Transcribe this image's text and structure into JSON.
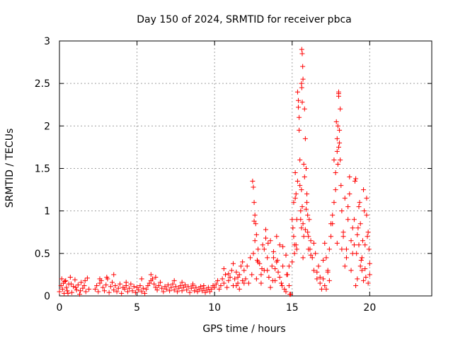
{
  "chart_data": {
    "type": "scatter",
    "title": "Day 150 of 2024, SRMTID for receiver pbca",
    "xlabel": "GPS time / hours",
    "ylabel": "SRMTID / TECUs",
    "xlim": [
      0,
      24
    ],
    "ylim": [
      0,
      3
    ],
    "xticks": [
      0,
      5,
      10,
      15,
      20
    ],
    "xtick_labels": [
      "0",
      "5",
      "10",
      "15",
      "20"
    ],
    "yticks": [
      0,
      0.5,
      1,
      1.5,
      2,
      2.5,
      3
    ],
    "ytick_labels": [
      "0",
      "0.5",
      "1",
      "1.5",
      "2",
      "2.5",
      "3"
    ],
    "grid": true,
    "marker": "+",
    "series": [
      {
        "name": "pbca",
        "color": "#ff0000",
        "x": [
          0.0,
          0.1,
          0.15,
          0.2,
          0.25,
          0.3,
          0.4,
          0.45,
          0.5,
          0.6,
          0.7,
          0.8,
          0.9,
          1.0,
          1.1,
          1.2,
          1.3,
          1.4,
          1.5,
          1.6,
          1.7,
          1.8,
          1.9,
          0.35,
          0.55,
          0.75,
          1.05,
          1.35,
          1.65,
          2.3,
          2.4,
          2.5,
          2.6,
          2.7,
          2.8,
          2.9,
          3.0,
          3.1,
          3.2,
          3.3,
          3.4,
          3.5,
          3.6,
          3.7,
          3.8,
          3.9,
          4.0,
          4.1,
          4.2,
          4.3,
          4.4,
          4.5,
          4.6,
          4.7,
          4.8,
          4.9,
          5.0,
          5.1,
          5.2,
          5.3,
          5.4,
          5.5,
          5.6,
          5.7,
          5.8,
          5.9,
          6.0,
          6.1,
          6.2,
          6.3,
          6.4,
          6.5,
          6.6,
          6.7,
          6.8,
          6.9,
          7.0,
          7.1,
          7.2,
          7.3,
          7.4,
          7.5,
          7.6,
          7.7,
          7.8,
          7.9,
          8.0,
          8.1,
          8.2,
          8.3,
          8.4,
          8.5,
          8.6,
          8.7,
          8.8,
          8.9,
          9.0,
          9.1,
          9.2,
          9.3,
          9.4,
          9.5,
          9.6,
          9.7,
          9.8,
          9.9,
          2.6,
          3.05,
          3.5,
          4.3,
          5.3,
          5.9,
          6.2,
          7.4,
          7.9,
          8.6,
          9.3,
          10.0,
          10.1,
          10.2,
          10.3,
          10.4,
          10.5,
          10.6,
          10.7,
          10.8,
          10.9,
          11.0,
          11.1,
          11.2,
          11.3,
          11.4,
          11.5,
          11.6,
          11.7,
          11.8,
          11.9,
          10.6,
          10.9,
          11.2,
          11.5,
          11.8,
          11.4,
          11.6,
          11.9,
          12.0,
          12.1,
          12.2,
          12.3,
          12.4,
          12.45,
          12.5,
          12.55,
          12.6,
          12.65,
          12.7,
          12.8,
          12.9,
          13.0,
          13.1,
          13.2,
          13.3,
          13.4,
          13.5,
          13.6,
          13.7,
          13.8,
          13.9,
          14.0,
          14.1,
          14.2,
          14.3,
          14.4,
          14.5,
          14.6,
          14.7,
          14.8,
          14.9,
          12.5,
          12.6,
          12.7,
          12.8,
          13.0,
          13.2,
          13.4,
          13.6,
          13.8,
          14.0,
          14.2,
          14.4,
          14.6,
          14.8,
          12.55,
          12.75,
          13.05,
          13.45,
          13.75,
          14.05,
          14.35,
          14.65,
          14.85,
          13.3,
          13.9,
          15.0,
          15.05,
          15.1,
          15.15,
          15.2,
          15.25,
          15.3,
          15.35,
          15.4,
          15.45,
          15.5,
          15.55,
          15.6,
          15.62,
          15.65,
          15.68,
          15.7,
          15.75,
          15.8,
          15.85,
          15.9,
          15.95,
          16.0,
          16.05,
          16.1,
          16.15,
          16.2,
          16.3,
          16.4,
          16.5,
          16.6,
          16.7,
          16.8,
          16.9,
          15.0,
          15.1,
          15.2,
          15.3,
          15.4,
          15.5,
          15.6,
          15.7,
          15.8,
          15.9,
          16.0,
          16.2,
          16.4,
          16.6,
          16.8,
          15.25,
          15.45,
          15.65,
          15.85,
          16.05,
          15.15,
          15.35,
          15.55,
          15.75,
          15.95,
          15.6,
          15.62,
          15.65,
          15.7,
          17.0,
          17.1,
          17.2,
          17.3,
          17.4,
          17.5,
          17.6,
          17.7,
          17.8,
          17.85,
          17.9,
          17.95,
          18.0,
          18.05,
          18.1,
          18.15,
          18.2,
          18.3,
          18.4,
          18.5,
          18.6,
          18.7,
          18.8,
          18.9,
          17.0,
          17.2,
          17.4,
          17.6,
          17.8,
          18.0,
          18.2,
          18.4,
          18.6,
          18.8,
          17.1,
          17.3,
          17.5,
          17.7,
          17.9,
          18.1,
          18.3,
          18.5,
          18.7,
          18.9,
          17.95,
          18.0,
          18.05,
          17.9,
          18.0,
          19.0,
          19.1,
          19.2,
          19.3,
          19.4,
          19.5,
          19.6,
          19.7,
          19.8,
          19.9,
          20.0,
          19.05,
          19.15,
          19.25,
          19.35,
          19.45,
          19.55,
          19.65,
          19.75,
          19.85,
          19.95,
          19.0,
          19.2,
          19.4,
          19.6,
          19.8,
          20.0,
          19.1,
          19.3,
          19.5,
          19.7,
          19.9
        ],
        "y": [
          0.05,
          0.12,
          0.2,
          0.08,
          0.15,
          0.03,
          0.18,
          0.1,
          0.06,
          0.14,
          0.22,
          0.04,
          0.11,
          0.19,
          0.07,
          0.13,
          0.02,
          0.16,
          0.09,
          0.12,
          0.05,
          0.21,
          0.08,
          0.17,
          0.03,
          0.14,
          0.1,
          0.06,
          0.18,
          0.08,
          0.12,
          0.05,
          0.15,
          0.18,
          0.1,
          0.06,
          0.13,
          0.2,
          0.04,
          0.11,
          0.16,
          0.07,
          0.12,
          0.05,
          0.09,
          0.14,
          0.03,
          0.1,
          0.08,
          0.12,
          0.05,
          0.09,
          0.14,
          0.06,
          0.11,
          0.04,
          0.1,
          0.07,
          0.12,
          0.05,
          0.09,
          0.03,
          0.08,
          0.12,
          0.15,
          0.18,
          0.2,
          0.14,
          0.1,
          0.07,
          0.12,
          0.16,
          0.09,
          0.05,
          0.11,
          0.08,
          0.13,
          0.06,
          0.1,
          0.14,
          0.07,
          0.11,
          0.05,
          0.09,
          0.12,
          0.06,
          0.1,
          0.13,
          0.07,
          0.11,
          0.04,
          0.09,
          0.12,
          0.06,
          0.1,
          0.05,
          0.08,
          0.11,
          0.06,
          0.09,
          0.04,
          0.07,
          0.1,
          0.05,
          0.08,
          0.12,
          0.2,
          0.22,
          0.25,
          0.16,
          0.2,
          0.25,
          0.22,
          0.18,
          0.16,
          0.14,
          0.12,
          0.1,
          0.14,
          0.18,
          0.08,
          0.12,
          0.2,
          0.15,
          0.25,
          0.1,
          0.18,
          0.22,
          0.3,
          0.12,
          0.2,
          0.28,
          0.15,
          0.25,
          0.35,
          0.18,
          0.3,
          0.32,
          0.26,
          0.38,
          0.22,
          0.4,
          0.12,
          0.08,
          0.15,
          0.2,
          0.35,
          0.15,
          0.45,
          0.25,
          1.35,
          1.28,
          1.1,
          0.95,
          0.85,
          0.72,
          0.55,
          0.38,
          0.25,
          0.6,
          0.3,
          0.78,
          0.45,
          0.22,
          0.65,
          0.35,
          0.52,
          0.18,
          0.4,
          0.28,
          0.6,
          0.15,
          0.35,
          0.08,
          0.48,
          0.25,
          0.12,
          0.02,
          0.5,
          0.65,
          0.2,
          0.4,
          0.15,
          0.55,
          0.3,
          0.1,
          0.45,
          0.7,
          0.22,
          0.58,
          0.05,
          0.35,
          0.88,
          0.42,
          0.32,
          0.62,
          0.18,
          0.42,
          0.12,
          0.25,
          0.02,
          0.68,
          0.32,
          0.4,
          0.8,
          1.1,
          0.6,
          1.45,
          1.2,
          0.9,
          2.4,
          2.3,
          2.1,
          1.3,
          1.0,
          0.8,
          2.9,
          2.85,
          2.7,
          2.55,
          1.55,
          2.2,
          1.85,
          1.5,
          1.2,
          0.95,
          0.7,
          0.9,
          0.55,
          0.65,
          0.45,
          0.3,
          0.5,
          0.2,
          0.35,
          0.15,
          0.08,
          0.9,
          0.7,
          1.15,
          0.55,
          2.22,
          1.6,
          1.25,
          0.85,
          1.4,
          1.02,
          0.75,
          0.48,
          0.62,
          0.28,
          0.22,
          0.6,
          1.95,
          1.05,
          0.78,
          0.55,
          0.5,
          1.35,
          0.9,
          0.7,
          1.1,
          2.5,
          2.45,
          2.28,
          0.45,
          0.2,
          0.12,
          0.45,
          0.3,
          0.55,
          0.7,
          0.85,
          1.1,
          1.45,
          2.05,
          1.7,
          2.0,
          2.4,
          1.95,
          1.6,
          1.3,
          1.0,
          0.75,
          1.15,
          0.55,
          0.9,
          1.4,
          0.65,
          0.8,
          0.42,
          0.08,
          0.18,
          0.95,
          1.25,
          2.35,
          0.55,
          0.35,
          1.05,
          0.3,
          0.62,
          0.28,
          0.85,
          1.6,
          1.85,
          2.2,
          0.7,
          0.45,
          1.2,
          0.5,
          1.55,
          2.38,
          1.8,
          0.62,
          1.75,
          0.6,
          1.38,
          0.2,
          1.05,
          0.85,
          0.3,
          1.25,
          0.6,
          0.95,
          0.15,
          0.38,
          1.35,
          0.5,
          0.8,
          1.1,
          0.42,
          0.65,
          1.0,
          0.22,
          0.7,
          0.55,
          0.9,
          0.72,
          0.35,
          0.18,
          1.15,
          0.25,
          0.12,
          0.6,
          0.45,
          0.32,
          0.75
        ]
      }
    ]
  }
}
